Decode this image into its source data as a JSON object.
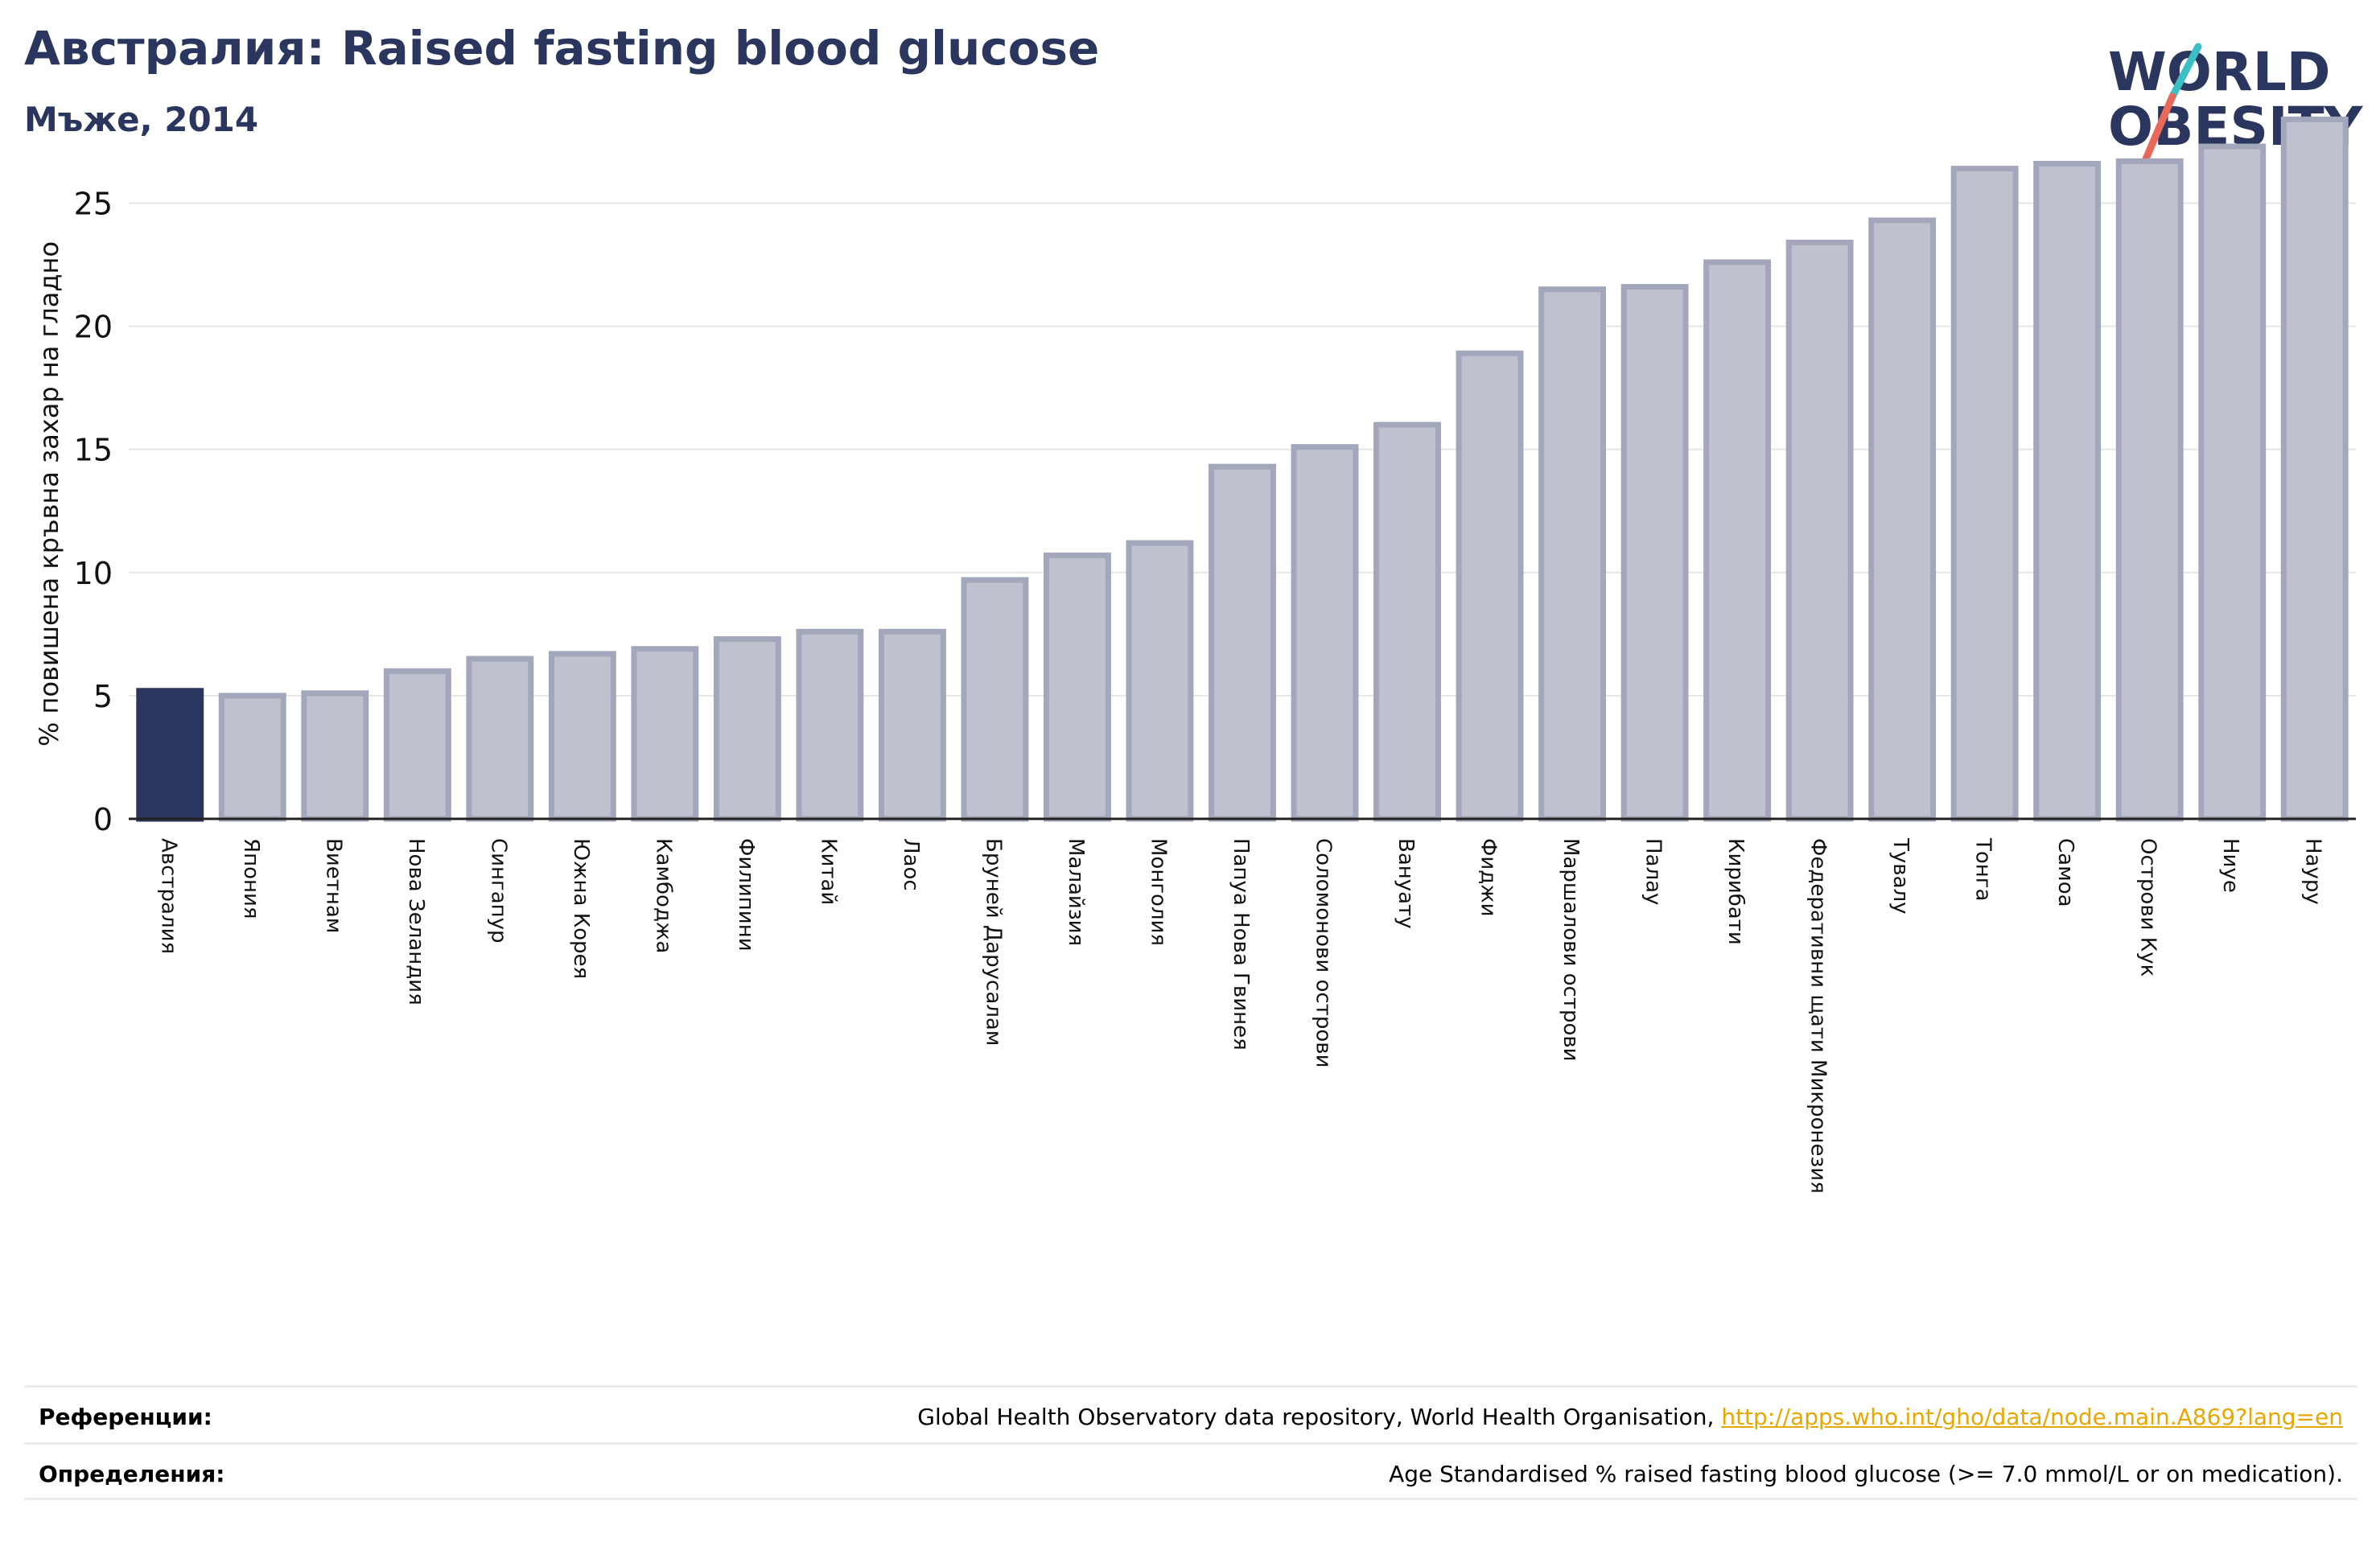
{
  "header": {
    "title": "Австралия: Raised fasting blood glucose",
    "subtitle": "Мъже, 2014"
  },
  "logo": {
    "line1": "WORLD",
    "line2": "OBESITY",
    "text_color": "#2b365f",
    "slash_colors": [
      "#3bbfc4",
      "#e8695a"
    ]
  },
  "chart_data": {
    "type": "bar",
    "ylabel": "% повишена кръвна захар на гладно",
    "xlabel": "",
    "ylim": [
      0,
      29
    ],
    "yticks": [
      0,
      5,
      10,
      15,
      20,
      25
    ],
    "grid": true,
    "highlight_color": "#2b365f",
    "bar_color": "#bfc1ce",
    "bar_edge_color": "#a3a7bb",
    "categories": [
      "Австралия",
      "Япония",
      "Виетнам",
      "Нова Зеландия",
      "Сингапур",
      "Южна Корея",
      "Камбоджа",
      "Филипини",
      "Китай",
      "Лаос",
      "Бруней Дарусалам",
      "Малайзия",
      "Монголия",
      "Папуа Нова Гвинея",
      "Соломонови острови",
      "Вануату",
      "Фиджи",
      "Маршалови острови",
      "Палау",
      "Кирибати",
      "Федеративни щати Микронезия",
      "Тувалу",
      "Тонга",
      "Самоа",
      "Острови Кук",
      "Ниуе",
      "Науру"
    ],
    "values": [
      5.2,
      5.0,
      5.1,
      6.0,
      6.5,
      6.7,
      6.9,
      7.3,
      7.6,
      7.6,
      9.7,
      10.7,
      11.2,
      14.3,
      15.1,
      16.0,
      18.9,
      21.5,
      21.6,
      22.6,
      23.4,
      24.3,
      26.4,
      26.6,
      26.7,
      27.3,
      28.4
    ],
    "highlight_index": 0
  },
  "references": {
    "label": "Референции:",
    "text": "Global Health Observatory data repository, World Health Organisation, ",
    "link": "http://apps.who.int/gho/data/node.main.A869?lang=en"
  },
  "definitions": {
    "label": "Определения:",
    "text": "Age Standardised % raised fasting blood glucose (>= 7.0 mmol/L or on medication)."
  }
}
